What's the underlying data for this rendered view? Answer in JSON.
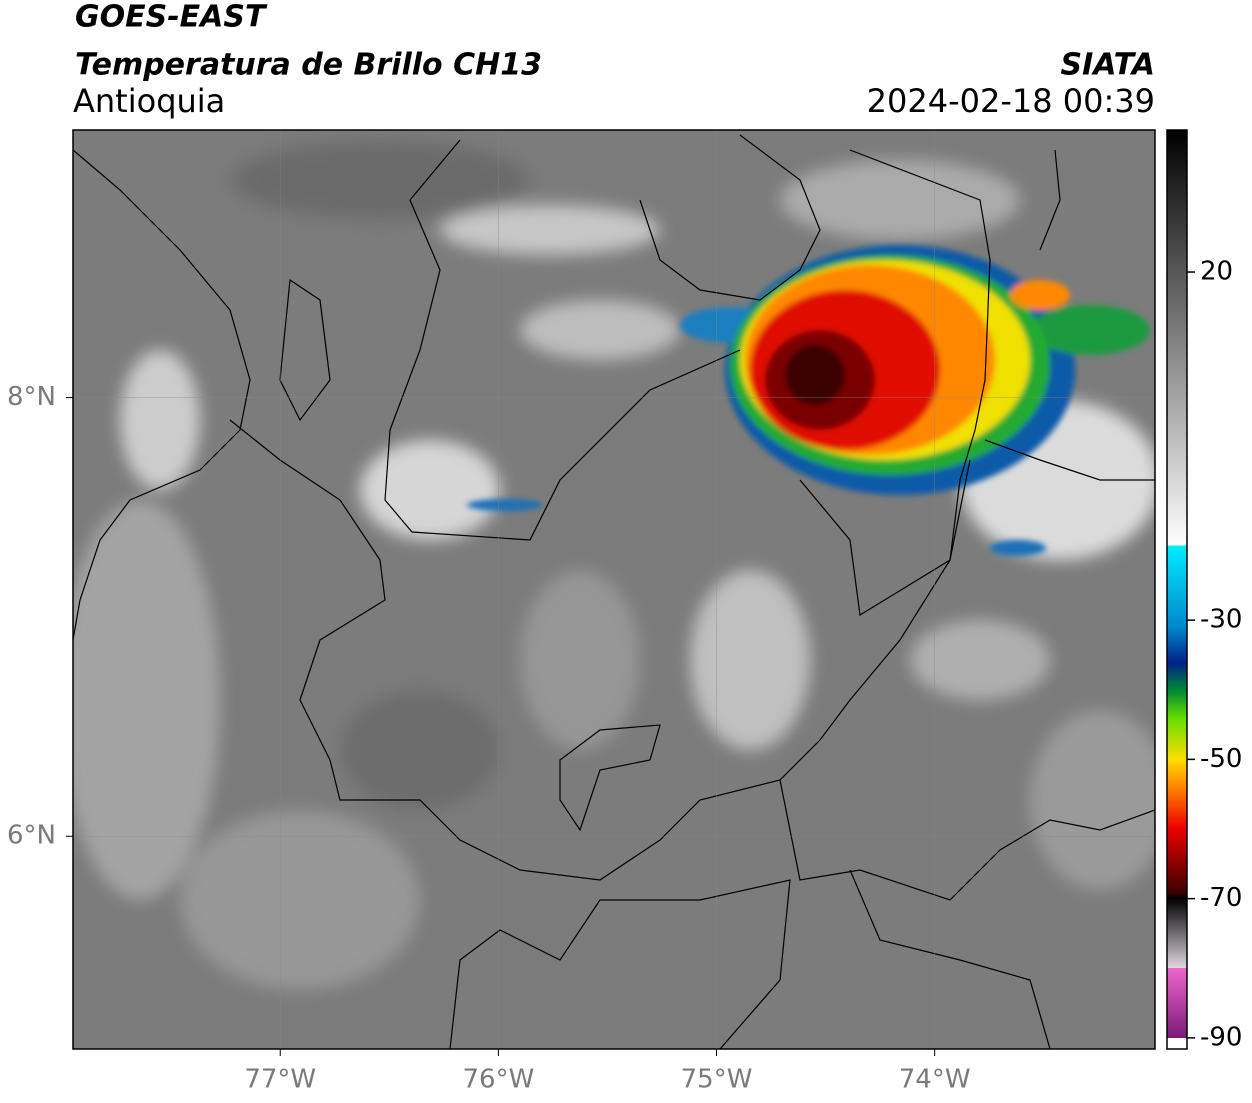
{
  "header": {
    "title": "GOES-EAST",
    "subtitle": "Temperatura de Brillo CH13",
    "region": "Antioquia",
    "source": "SIATA",
    "datetime": "2024-02-18 00:39"
  },
  "map": {
    "xlim": [
      -77.95,
      -72.99
    ],
    "ylim": [
      5.03,
      9.22
    ],
    "xticks": [
      {
        "value": -77,
        "label": "77°W"
      },
      {
        "value": -76,
        "label": "76°W"
      },
      {
        "value": -75,
        "label": "75°W"
      },
      {
        "value": -74,
        "label": "74°W"
      }
    ],
    "yticks": [
      {
        "value": 6,
        "label": "6°N"
      },
      {
        "value": 8,
        "label": "8°N"
      }
    ],
    "grid": true
  },
  "colorbar": {
    "lim": [
      -91.6,
      40.4
    ],
    "ticks": [
      20,
      -30,
      -50,
      -70,
      -90
    ]
  }
}
